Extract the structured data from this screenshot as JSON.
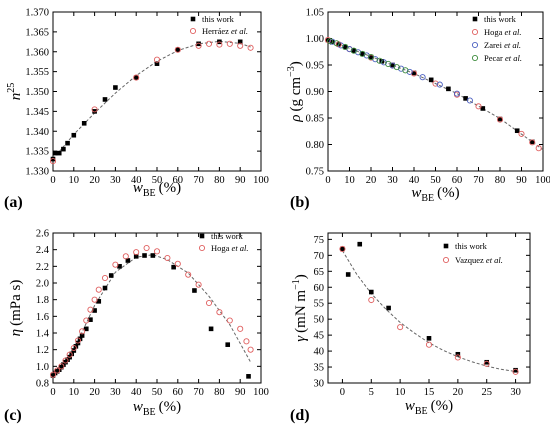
{
  "chart_data": [
    {
      "type": "scatter",
      "panel": "(a)",
      "ylabel_main": "n",
      "ylabel_sup": "25",
      "xlabel_main": "w",
      "xlabel_sub": "BE",
      "xlabel_unit": "(%)",
      "xlim": [
        0,
        100
      ],
      "ylim": [
        1.33,
        1.37
      ],
      "xticks": [
        0,
        10,
        20,
        30,
        40,
        50,
        60,
        70,
        80,
        90,
        100
      ],
      "yticks": [
        1.33,
        1.335,
        1.34,
        1.345,
        1.35,
        1.355,
        1.36,
        1.365,
        1.37
      ],
      "yticks_labels": [
        "1.330",
        "1.335",
        "1.340",
        "1.345",
        "1.350",
        "1.355",
        "1.360",
        "1.365",
        "1.370"
      ],
      "grid": false,
      "legend_position": "top-right",
      "series": [
        {
          "name": "this work",
          "marker": "square",
          "color": "#000000",
          "x": [
            0,
            1,
            3,
            5,
            7,
            10,
            15,
            20,
            25,
            30,
            40,
            50,
            60,
            70,
            80,
            90
          ],
          "y": [
            1.333,
            1.3345,
            1.3345,
            1.3355,
            1.337,
            1.339,
            1.342,
            1.345,
            1.348,
            1.351,
            1.3535,
            1.357,
            1.3605,
            1.362,
            1.3625,
            1.3625
          ]
        },
        {
          "name": "Herráez",
          "name_suffix": "et al.",
          "marker": "circle-open",
          "color": "#e06060",
          "x": [
            0,
            20,
            40,
            50,
            60,
            70,
            75,
            80,
            85,
            90,
            95
          ],
          "y": [
            1.3325,
            1.3455,
            1.3535,
            1.358,
            1.3605,
            1.3615,
            1.362,
            1.3618,
            1.362,
            1.3615,
            1.361
          ]
        }
      ],
      "trend": {
        "style": "dashed",
        "color": "#666666",
        "x": [
          0,
          10,
          20,
          30,
          40,
          50,
          60,
          70,
          80,
          90,
          95
        ],
        "y": [
          1.333,
          1.3392,
          1.3446,
          1.3496,
          1.354,
          1.3576,
          1.3603,
          1.362,
          1.3626,
          1.3621,
          1.3612
        ]
      }
    },
    {
      "type": "scatter",
      "panel": "(b)",
      "ylabel_main": "ρ",
      "ylabel_unit": "(g cm",
      "ylabel_sup": "−3",
      "ylabel_close": ")",
      "xlabel_main": "w",
      "xlabel_sub": "BE",
      "xlabel_unit": "(%)",
      "xlim": [
        0,
        100
      ],
      "ylim": [
        0.75,
        1.05
      ],
      "xticks": [
        0,
        10,
        20,
        30,
        40,
        50,
        60,
        70,
        80,
        90,
        100
      ],
      "yticks": [
        0.75,
        0.8,
        0.85,
        0.9,
        0.95,
        1.0,
        1.05
      ],
      "yticks_labels": [
        "0.75",
        "0.80",
        "0.85",
        "0.90",
        "0.95",
        "1.00",
        "1.05"
      ],
      "grid": false,
      "legend_position": "top-right",
      "series": [
        {
          "name": "this work",
          "marker": "square",
          "color": "#000000",
          "x": [
            0,
            2,
            5,
            8,
            12,
            16,
            20,
            25,
            30,
            40,
            48,
            56,
            64,
            72,
            80,
            88,
            95
          ],
          "y": [
            0.997,
            0.993,
            0.989,
            0.984,
            0.977,
            0.971,
            0.965,
            0.957,
            0.95,
            0.935,
            0.922,
            0.905,
            0.887,
            0.868,
            0.848,
            0.826,
            0.805
          ]
        },
        {
          "name": "Hoga",
          "name_suffix": "et al.",
          "marker": "circle-open",
          "color": "#e06060",
          "x": [
            0,
            5,
            10,
            20,
            30,
            40,
            50,
            60,
            70,
            80,
            90,
            95,
            98
          ],
          "y": [
            0.997,
            0.989,
            0.98,
            0.964,
            0.949,
            0.934,
            0.915,
            0.894,
            0.872,
            0.847,
            0.82,
            0.804,
            0.793
          ]
        },
        {
          "name": "Zarei",
          "name_suffix": "et al.",
          "marker": "circle-open",
          "color": "#4a5fc0",
          "x": [
            2,
            6,
            10,
            14,
            18,
            22,
            26,
            30,
            34,
            38,
            44,
            52,
            60,
            66
          ],
          "y": [
            0.994,
            0.987,
            0.98,
            0.974,
            0.968,
            0.961,
            0.955,
            0.949,
            0.943,
            0.937,
            0.927,
            0.913,
            0.896,
            0.883
          ]
        },
        {
          "name": "Pecar",
          "name_suffix": "et al.",
          "marker": "circle-open",
          "color": "#3a8a3a",
          "x": [
            1,
            4,
            8,
            12,
            16,
            20,
            24,
            28,
            32,
            36
          ],
          "y": [
            0.995,
            0.991,
            0.984,
            0.977,
            0.971,
            0.965,
            0.958,
            0.952,
            0.946,
            0.94
          ]
        }
      ],
      "trend": {
        "style": "dashed",
        "color": "#666666",
        "x": [
          0,
          20,
          40,
          60,
          80,
          100
        ],
        "y": [
          0.997,
          0.966,
          0.934,
          0.896,
          0.849,
          0.79
        ]
      }
    },
    {
      "type": "scatter",
      "panel": "(c)",
      "ylabel_main": "η",
      "ylabel_unit": "(mPa s)",
      "xlabel_main": "w",
      "xlabel_sub": "BE",
      "xlabel_unit": "(%)",
      "xlim": [
        0,
        100
      ],
      "ylim": [
        0.8,
        2.6
      ],
      "xticks": [
        0,
        10,
        20,
        30,
        40,
        50,
        60,
        70,
        80,
        90,
        100
      ],
      "yticks": [
        0.8,
        1.0,
        1.2,
        1.4,
        1.6,
        1.8,
        2.0,
        2.2,
        2.4,
        2.6
      ],
      "yticks_labels": [
        "0.8",
        "1.0",
        "1.2",
        "1.4",
        "1.6",
        "1.8",
        "2.0",
        "2.2",
        "2.4",
        "2.6"
      ],
      "grid": false,
      "legend_position": "top-right",
      "series": [
        {
          "name": "this work",
          "marker": "square",
          "color": "#000000",
          "x": [
            0,
            1,
            2,
            3,
            4,
            5,
            6,
            7,
            8,
            9,
            10,
            11,
            12,
            13,
            14,
            16,
            18,
            20,
            22,
            25,
            28,
            32,
            36,
            40,
            44,
            48,
            58,
            68,
            76,
            84,
            94
          ],
          "y": [
            0.89,
            0.92,
            0.94,
            0.96,
            0.99,
            1.02,
            1.05,
            1.08,
            1.11,
            1.15,
            1.19,
            1.24,
            1.28,
            1.33,
            1.37,
            1.45,
            1.56,
            1.67,
            1.78,
            1.94,
            2.09,
            2.2,
            2.27,
            2.32,
            2.33,
            2.33,
            2.19,
            1.91,
            1.45,
            1.26,
            0.88
          ]
        },
        {
          "name": "Hoga",
          "name_suffix": "et al.",
          "marker": "circle-open",
          "color": "#e06060",
          "x": [
            0,
            2,
            4,
            6,
            8,
            10,
            12,
            14,
            16,
            18,
            20,
            22,
            25,
            30,
            35,
            40,
            45,
            50,
            55,
            60,
            65,
            70,
            75,
            80,
            85,
            90,
            93,
            95
          ],
          "y": [
            0.9,
            0.95,
            1.0,
            1.07,
            1.14,
            1.22,
            1.31,
            1.42,
            1.55,
            1.68,
            1.8,
            1.92,
            2.06,
            2.22,
            2.32,
            2.37,
            2.42,
            2.38,
            2.3,
            2.23,
            2.1,
            1.98,
            1.76,
            1.65,
            1.55,
            1.45,
            1.3,
            1.2
          ]
        }
      ],
      "trend": {
        "style": "dashed",
        "color": "#666666",
        "x": [
          0,
          10,
          20,
          30,
          40,
          48,
          55,
          65,
          75,
          85,
          95
        ],
        "y": [
          0.88,
          1.2,
          1.73,
          2.13,
          2.31,
          2.34,
          2.28,
          2.12,
          1.84,
          1.5,
          1.05
        ]
      }
    },
    {
      "type": "scatter",
      "panel": "(d)",
      "ylabel_main": "γ",
      "ylabel_unit": "(mN m",
      "ylabel_sup": "−1",
      "ylabel_close": ")",
      "xlabel_main": "w",
      "xlabel_sub": "BE",
      "xlabel_unit": "(%)",
      "xlim": [
        -2.5,
        32.5
      ],
      "ylim": [
        30,
        77
      ],
      "xticks": [
        0,
        5,
        10,
        15,
        20,
        25,
        30
      ],
      "yticks": [
        30,
        35,
        40,
        45,
        50,
        55,
        60,
        65,
        70,
        75
      ],
      "yticks_labels": [
        "30",
        "35",
        "40",
        "45",
        "50",
        "55",
        "60",
        "65",
        "70",
        "75"
      ],
      "grid": false,
      "legend_position": "top-right",
      "series": [
        {
          "name": "this work",
          "marker": "square",
          "color": "#000000",
          "x": [
            0,
            1,
            3,
            5,
            8,
            15,
            20,
            25,
            30
          ],
          "y": [
            72.0,
            64.0,
            73.5,
            58.5,
            53.5,
            44.0,
            39.0,
            36.5,
            34.0
          ]
        },
        {
          "name": "Vazquez",
          "name_suffix": "et al.",
          "marker": "circle-open",
          "color": "#e06060",
          "x": [
            0,
            5,
            10,
            15,
            20,
            25,
            30
          ],
          "y": [
            72.0,
            56.0,
            47.5,
            42.0,
            38.0,
            36.0,
            33.5
          ]
        }
      ],
      "trend": {
        "style": "dashed",
        "color": "#666666",
        "x": [
          0,
          2.5,
          5,
          7.5,
          10,
          12.5,
          15,
          17.5,
          20,
          22.5,
          25,
          27.5,
          30
        ],
        "y": [
          71.5,
          64.0,
          58.0,
          53.2,
          49.0,
          45.6,
          42.6,
          40.2,
          38.2,
          36.6,
          35.3,
          34.3,
          33.6
        ]
      }
    }
  ]
}
